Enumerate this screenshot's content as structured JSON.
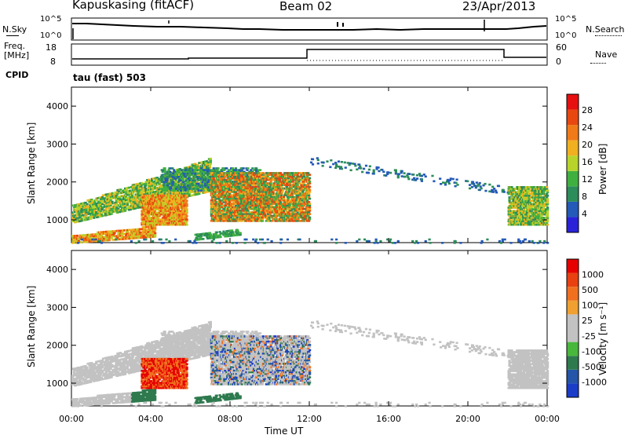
{
  "header": {
    "station": "Kapuskasing (fitACF)",
    "beam": "Beam 02",
    "date": "23/Apr/2013"
  },
  "sky_panel": {
    "left_label": "N.Sky",
    "right_label": "N.Search",
    "left_ticks": [
      "10^5",
      "10^0"
    ],
    "right_ticks": [
      "10^5",
      "10^0"
    ]
  },
  "freq_panel": {
    "left_label_line1": "Freq.",
    "left_label_line2": "[MHz]",
    "right_label": "Nave",
    "left_ticks": [
      "18",
      "8"
    ],
    "right_ticks": [
      "60",
      "0"
    ]
  },
  "cpid": {
    "label": "CPID",
    "mode": "tau (fast) 503"
  },
  "colors": {
    "power_scale": [
      "#2a22d8",
      "#245ab8",
      "#2c8c5a",
      "#3fb040",
      "#b8d42a",
      "#f0b020",
      "#f07a18",
      "#e84810",
      "#e61010"
    ],
    "velocity_scale": [
      "#1a3cc8",
      "#2455a8",
      "#2e7a4e",
      "#48b83c",
      "#c2c2c2",
      "#c2c2c2",
      "#f0a030",
      "#f07020",
      "#e84010",
      "#e60000"
    ]
  },
  "chart_data": [
    {
      "type": "heatmap",
      "name": "power",
      "ylabel": "Slant Range [km]",
      "yticks": [
        "4000",
        "3000",
        "2000",
        "1000"
      ],
      "xticks": [
        "00:00",
        "04:00",
        "08:00",
        "12:00",
        "16:00",
        "20:00",
        "00:00"
      ],
      "ylim": [
        400,
        4500
      ],
      "xlim_hours": [
        0,
        24
      ],
      "colorbar_title": "Power [dB]",
      "colorbar_ticks": [
        "28",
        "24",
        "20",
        "16",
        "12",
        "8",
        "4"
      ],
      "colorbar_range": [
        0,
        32
      ]
    },
    {
      "type": "heatmap",
      "name": "velocity",
      "ylabel": "Slant Range [km]",
      "yticks": [
        "4000",
        "3000",
        "2000",
        "1000"
      ],
      "xticks": [
        "00:00",
        "04:00",
        "08:00",
        "12:00",
        "16:00",
        "20:00",
        "00:00"
      ],
      "xlabel": "Time UT",
      "ylim": [
        400,
        4500
      ],
      "xlim_hours": [
        0,
        24
      ],
      "colorbar_title": "Velocity [m s⁻¹]",
      "colorbar_ticks": [
        "1000",
        "500",
        "100",
        "25",
        "-25",
        "-100",
        "-500",
        "-1000"
      ]
    }
  ]
}
